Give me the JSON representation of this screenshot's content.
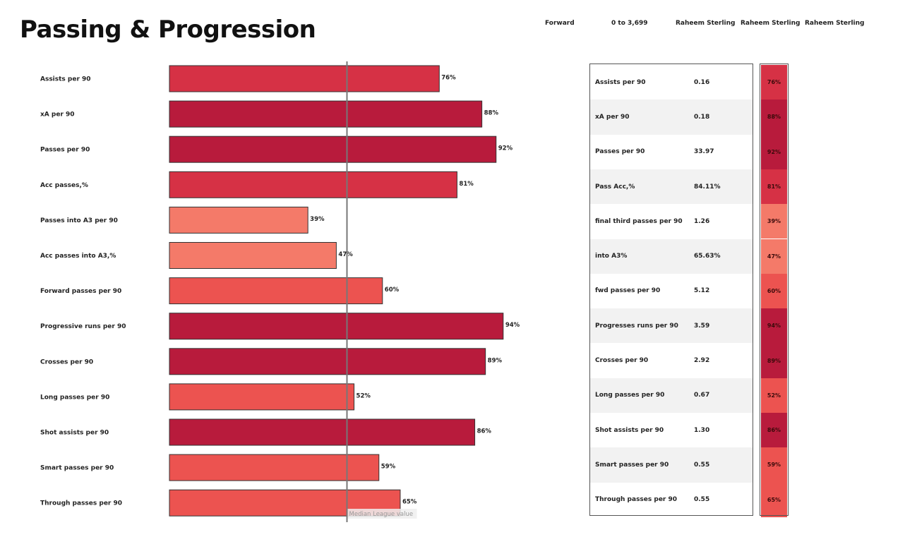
{
  "title": "Passing & Progression",
  "filters": [
    "Forward",
    "0 to 3,699",
    "Raheem Sterling",
    "Raheem Sterling",
    "Raheem Sterling"
  ],
  "median_label": "Median League value",
  "colors": {
    "low": "#f47a69",
    "mid": "#ec5350",
    "high": "#d63145",
    "top": "#b81b3c",
    "row_alt": "#f2f2f2",
    "median_line": "#777777"
  },
  "chart_data": {
    "type": "bar",
    "orientation": "horizontal",
    "median_value": 50,
    "xlim": [
      0,
      100
    ],
    "categories": [
      "Assists per 90",
      "xA per 90",
      "Passes per 90",
      "Acc passes,%",
      "Passes into A3 per 90",
      "Acc passes into A3,%",
      "Forward passes per 90",
      "Progressive runs per 90",
      "Crosses per 90",
      "Long passes per 90",
      "Shot assists per 90",
      "Smart passes per 90",
      "Through passes per 90"
    ],
    "values": [
      76,
      88,
      92,
      81,
      39,
      47,
      60,
      94,
      89,
      52,
      86,
      59,
      65
    ]
  },
  "table": {
    "rows": [
      {
        "metric": "Assists per 90",
        "value": "0.16",
        "pct": "76%"
      },
      {
        "metric": "xA per 90",
        "value": "0.18",
        "pct": "88%"
      },
      {
        "metric": "Passes per 90",
        "value": "33.97",
        "pct": "92%"
      },
      {
        "metric": "Pass Acc,%",
        "value": "84.11%",
        "pct": "81%"
      },
      {
        "metric": "final third passes per 90",
        "value": "1.26",
        "pct": "39%"
      },
      {
        "metric": "into A3%",
        "value": "65.63%",
        "pct": "47%"
      },
      {
        "metric": "fwd passes per 90",
        "value": "5.12",
        "pct": "60%"
      },
      {
        "metric": "Progresses runs per 90",
        "value": "3.59",
        "pct": "94%"
      },
      {
        "metric": "Crosses per 90",
        "value": "2.92",
        "pct": "89%"
      },
      {
        "metric": "Long passes per 90",
        "value": "0.67",
        "pct": "52%"
      },
      {
        "metric": "Shot assists per 90",
        "value": "1.30",
        "pct": "86%"
      },
      {
        "metric": "Smart passes per 90",
        "value": "0.55",
        "pct": "59%"
      },
      {
        "metric": "Through passes per 90",
        "value": "0.55",
        "pct": "65%"
      }
    ]
  }
}
